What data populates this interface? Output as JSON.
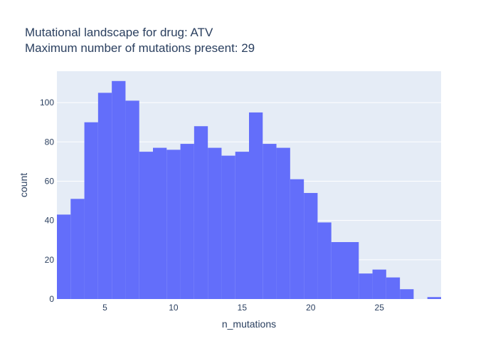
{
  "chart_data": {
    "type": "bar",
    "title_lines": [
      "Mutational landscape for drug: ATV",
      "Maximum number of mutations present: 29"
    ],
    "xlabel": "n_mutations",
    "ylabel": "count",
    "x_bin_width": 1,
    "x_start": 1.5,
    "xlim": [
      1.5,
      29.5
    ],
    "ylim": [
      0,
      116
    ],
    "x_ticks": [
      5,
      10,
      15,
      20,
      25
    ],
    "x_tick_labels": [
      "5",
      "10",
      "15",
      "20",
      "25"
    ],
    "y_ticks": [
      0,
      20,
      40,
      60,
      80,
      100
    ],
    "y_tick_labels": [
      "0",
      "20",
      "40",
      "60",
      "80",
      "100"
    ],
    "grid": true,
    "colors": {
      "bar": "#636efa",
      "plot_bg": "#e5ecf6",
      "grid": "#ffffff",
      "text": "#2a3f5f"
    },
    "x": [
      2,
      3,
      4,
      5,
      6,
      7,
      8,
      9,
      10,
      11,
      12,
      13,
      14,
      15,
      16,
      17,
      18,
      19,
      20,
      21,
      22,
      23,
      24,
      25,
      26,
      27,
      28,
      29
    ],
    "values": [
      43,
      51,
      90,
      105,
      111,
      101,
      75,
      77,
      76,
      79,
      88,
      77,
      73,
      75,
      95,
      79,
      77,
      61,
      54,
      39,
      29,
      29,
      13,
      15,
      11,
      5,
      0,
      1
    ]
  }
}
